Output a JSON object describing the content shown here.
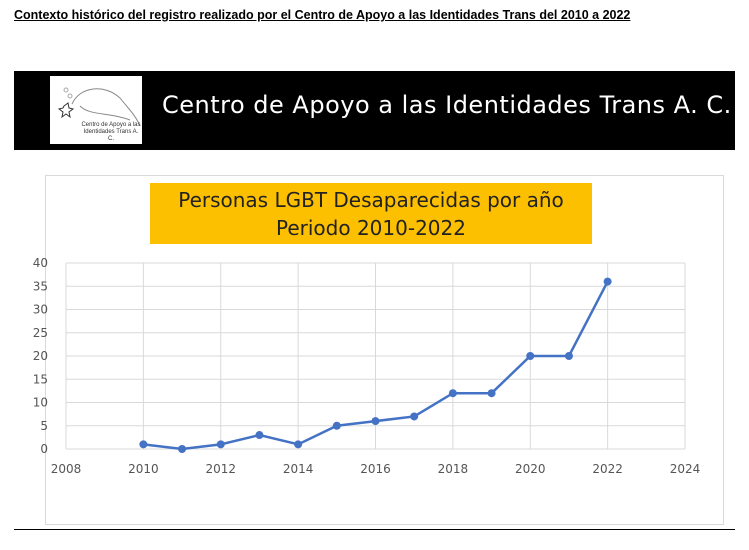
{
  "document": {
    "title": "Contexto histórico del registro realizado por el Centro de Apoyo a las Identidades Trans del 2010 a 2022"
  },
  "banner": {
    "title": "Centro de Apoyo a las Identidades Trans A. C.",
    "logo_text": "Centro de Apoyo a las Identidades Trans A. C."
  },
  "chart_data": {
    "type": "line",
    "title_line1": "Personas LGBT Desaparecidas por año",
    "title_line2": "Periodo 2010-2022",
    "x": [
      2010,
      2011,
      2012,
      2013,
      2014,
      2015,
      2016,
      2017,
      2018,
      2019,
      2020,
      2021,
      2022
    ],
    "series": [
      {
        "name": "Personas LGBT desaparecidas",
        "values": [
          1,
          0,
          1,
          3,
          1,
          5,
          6,
          7,
          12,
          12,
          20,
          20,
          36
        ],
        "color": "#4472c4"
      }
    ],
    "xlim": [
      2008,
      2024
    ],
    "ylim": [
      0,
      40
    ],
    "xticks": [
      2008,
      2010,
      2012,
      2014,
      2016,
      2018,
      2020,
      2022,
      2024
    ],
    "yticks": [
      0,
      5,
      10,
      15,
      20,
      25,
      30,
      35,
      40
    ],
    "grid": true,
    "legend": "none"
  }
}
